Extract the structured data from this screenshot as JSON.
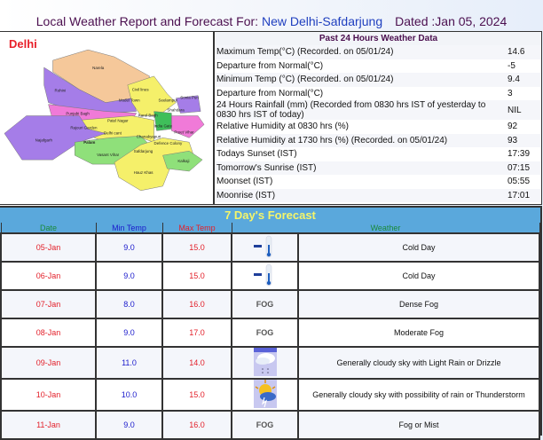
{
  "header": {
    "title": "Local Weather Report and Forecast For:",
    "location": "New Delhi-Safdarjung",
    "dated": "Dated :Jan 05, 2024"
  },
  "map": {
    "title": "Delhi",
    "labels": [
      "Narela",
      "Rohini",
      "Civil lines",
      "Model Town",
      "Seelampur",
      "Shahdara",
      "Punjabi Bagh",
      "Patel Nagar",
      "Karol Bagh",
      "Rajouri Garden",
      "Delhi cant",
      "India Gate",
      "Preet Vihar",
      "Najafgarh",
      "Palam",
      "Vasant Vihar",
      "Chanakyapuri",
      "Defence Colony",
      "Safdarjung",
      "Kalkaji",
      "Hauz Khas",
      "Sonia Puri"
    ]
  },
  "past": {
    "title": "Past 24 Hours Weather Data",
    "rows": [
      {
        "label": "Maximum Temp(°C) (Recorded. on 05/01/24)",
        "value": "14.6"
      },
      {
        "label": "Departure from Normal(°C)",
        "value": "-5"
      },
      {
        "label": "Minimum Temp (°C) (Recorded. on 05/01/24)",
        "value": "9.4"
      },
      {
        "label": "Departure from Normal(°C)",
        "value": "3"
      },
      {
        "label": "24 Hours Rainfall (mm) (Recorded from 0830 hrs IST of yesterday to 0830 hrs IST of today)",
        "value": "NIL"
      },
      {
        "label": "Relative Humidity at 0830 hrs (%)",
        "value": "92"
      },
      {
        "label": "Relative Humidity at 1730 hrs (%) (Recorded. on 05/01/24)",
        "value": "93"
      },
      {
        "label": "Todays Sunset (IST)",
        "value": "17:39"
      },
      {
        "label": "Tomorrow's Sunrise (IST)",
        "value": "07:15"
      },
      {
        "label": "Moonset (IST)",
        "value": "05:55"
      },
      {
        "label": "Moonrise (IST)",
        "value": "17:01"
      }
    ]
  },
  "forecast": {
    "title": "7 Day's Forecast",
    "columns": {
      "date": "Date",
      "min": "Min Temp",
      "max": "Max Temp",
      "weather": "Weather"
    },
    "colors": {
      "date": "#1a8a3a",
      "min": "#1a1acc",
      "max": "#e3202a",
      "weather": "#1a8a3a"
    },
    "rows": [
      {
        "date": "05-Jan",
        "min": "9.0",
        "max": "15.0",
        "icon": "cold-day-icon",
        "weather": "Cold Day"
      },
      {
        "date": "06-Jan",
        "min": "9.0",
        "max": "15.0",
        "icon": "cold-day-icon",
        "weather": "Cold Day"
      },
      {
        "date": "07-Jan",
        "min": "8.0",
        "max": "16.0",
        "icon": "fog-icon",
        "icon_text": "FOG",
        "weather": "Dense Fog"
      },
      {
        "date": "08-Jan",
        "min": "9.0",
        "max": "17.0",
        "icon": "fog-icon",
        "icon_text": "FOG",
        "weather": "Moderate Fog"
      },
      {
        "date": "09-Jan",
        "min": "11.0",
        "max": "14.0",
        "icon": "cloud-rain-icon",
        "weather": "Generally cloudy sky with Light Rain or Drizzle"
      },
      {
        "date": "10-Jan",
        "min": "10.0",
        "max": "15.0",
        "icon": "thunderstorm-icon",
        "weather": "Generally cloudy sky with possibility of rain or Thunderstorm"
      },
      {
        "date": "11-Jan",
        "min": "9.0",
        "max": "16.0",
        "icon": "fog-icon",
        "icon_text": "FOG",
        "weather": "Fog or Mist"
      }
    ]
  }
}
